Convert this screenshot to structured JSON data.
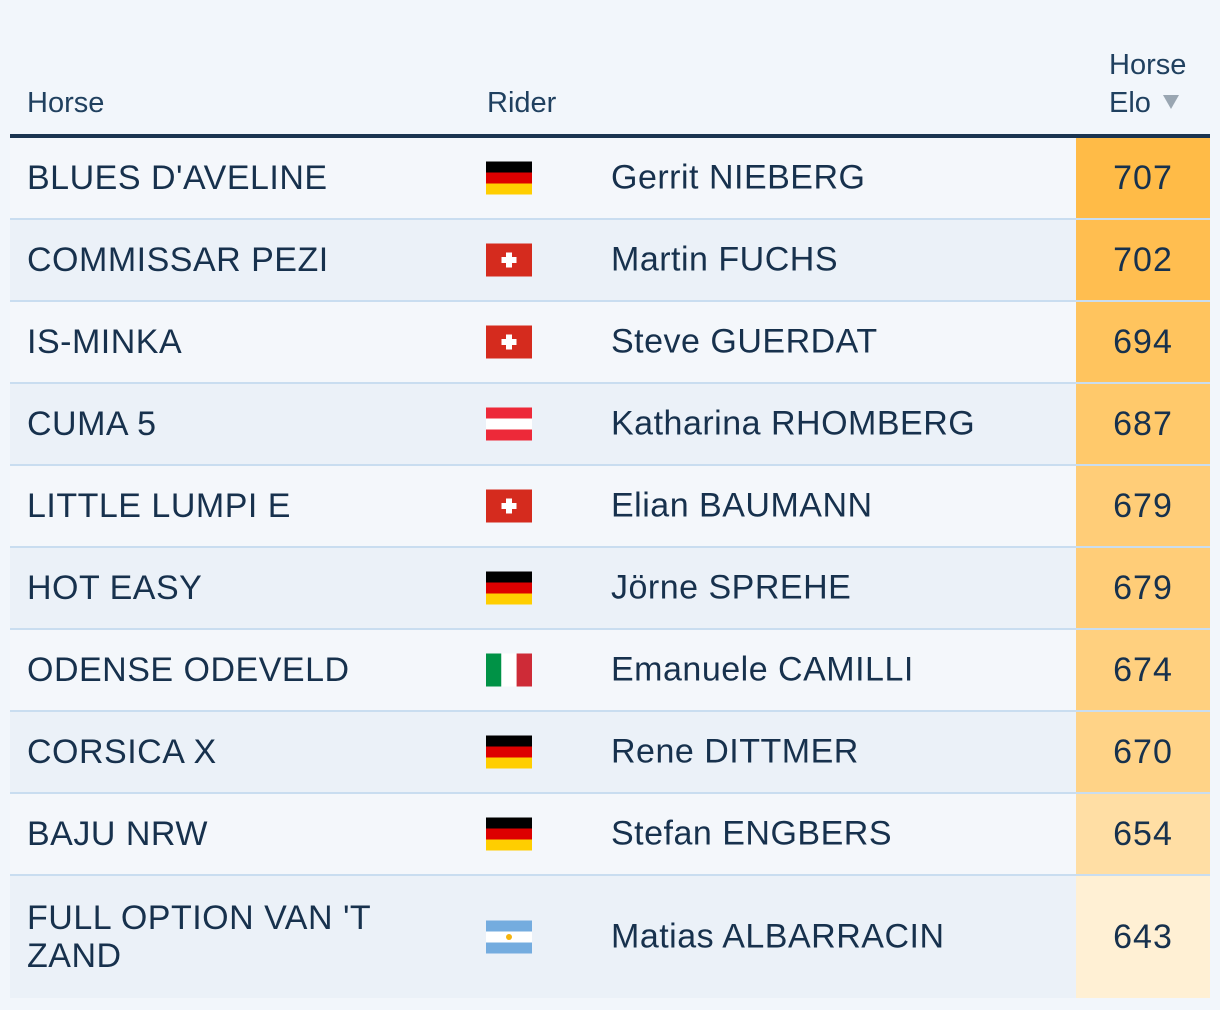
{
  "header": {
    "horse_label": "Horse",
    "rider_label": "Rider",
    "elo_label_line1": "Horse",
    "elo_label_line2": "Elo",
    "sort_icon": "sort-desc-icon"
  },
  "rows": [
    {
      "horse": "BLUES D'AVELINE",
      "flag": "germany-flag-icon",
      "rider": "Gerrit NIEBERG",
      "elo": "707",
      "elo_color": "#ffbb47"
    },
    {
      "horse": "COMMISSAR PEZI",
      "flag": "switzerland-flag-icon",
      "rider": "Martin FUCHS",
      "elo": "702",
      "elo_color": "#ffbe50"
    },
    {
      "horse": "IS-MINKA",
      "flag": "switzerland-flag-icon",
      "rider": "Steve GUERDAT",
      "elo": "694",
      "elo_color": "#ffc45e"
    },
    {
      "horse": "CUMA 5",
      "flag": "austria-flag-icon",
      "rider": "Katharina RHOMBERG",
      "elo": "687",
      "elo_color": "#ffc96b"
    },
    {
      "horse": "LITTLE LUMPI E",
      "flag": "switzerland-flag-icon",
      "rider": "Elian BAUMANN",
      "elo": "679",
      "elo_color": "#ffcd78"
    },
    {
      "horse": "HOT EASY",
      "flag": "germany-flag-icon",
      "rider": "Jörne SPREHE",
      "elo": "679",
      "elo_color": "#ffcd78"
    },
    {
      "horse": "ODENSE ODEVELD",
      "flag": "italy-flag-icon",
      "rider": "Emanuele CAMILLI",
      "elo": "674",
      "elo_color": "#ffd07f"
    },
    {
      "horse": "CORSICA X",
      "flag": "germany-flag-icon",
      "rider": "Rene DITTMER",
      "elo": "670",
      "elo_color": "#ffd387"
    },
    {
      "horse": "BAJU NRW",
      "flag": "germany-flag-icon",
      "rider": "Stefan ENGBERS",
      "elo": "654",
      "elo_color": "#ffdea4"
    },
    {
      "horse": "FULL OPTION VAN 'T ZAND",
      "flag": "argentina-flag-icon",
      "rider": "Matias ALBARRACIN",
      "elo": "643",
      "elo_color": "#fff0d4"
    }
  ]
}
